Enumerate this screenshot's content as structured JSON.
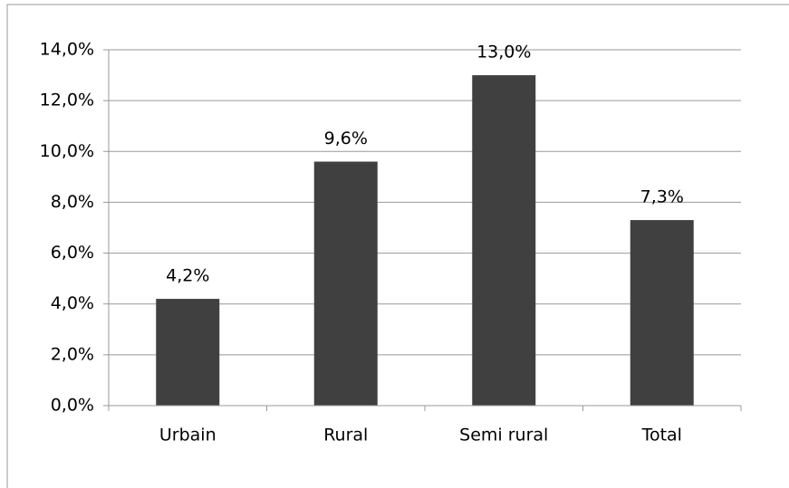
{
  "chart_data": {
    "type": "bar",
    "categories": [
      "Urbain",
      "Rural",
      "Semi rural",
      "Total"
    ],
    "values": [
      4.2,
      9.6,
      13.0,
      7.3
    ],
    "value_labels": [
      "4,2%",
      "9,6%",
      "13,0%",
      "7,3%"
    ],
    "color": "#404040",
    "ylim": [
      0,
      14
    ],
    "yticks": [
      {
        "value": 0,
        "label": "0,0%"
      },
      {
        "value": 2,
        "label": "2,0%"
      },
      {
        "value": 4,
        "label": "4,0%"
      },
      {
        "value": 6,
        "label": "6,0%"
      },
      {
        "value": 8,
        "label": "8,0%"
      },
      {
        "value": 10,
        "label": "10,0%"
      },
      {
        "value": 12,
        "label": "12,0%"
      },
      {
        "value": 14,
        "label": "14,0%"
      }
    ],
    "grid": true
  }
}
